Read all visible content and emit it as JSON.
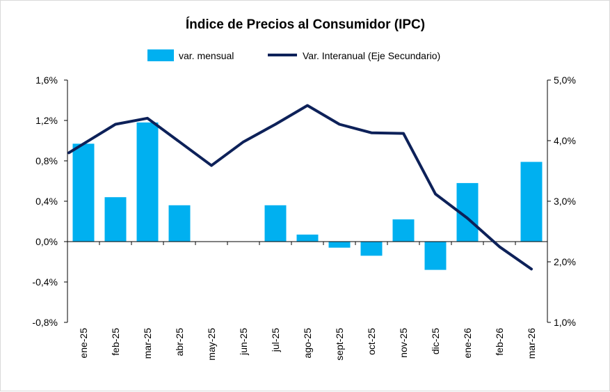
{
  "chart_data": {
    "type": "bar",
    "title": "Índice de Precios al Consumidor  (IPC)",
    "categories": [
      "ene-25",
      "feb-25",
      "mar-25",
      "abr-25",
      "may-25",
      "jun-25",
      "jul-25",
      "ago-25",
      "sept-25",
      "oct-25",
      "nov-25",
      "dic-25",
      "ene-26",
      "feb-26",
      "mar-26"
    ],
    "series": [
      {
        "name": "var. mensual",
        "type": "bar",
        "axis": "primary",
        "color": "#00b0f0",
        "values": [
          0.97,
          0.44,
          1.18,
          0.36,
          0.0,
          0.0,
          0.36,
          0.07,
          -0.06,
          -0.14,
          0.22,
          -0.28,
          0.58,
          0.0,
          0.79
        ]
      },
      {
        "name": "Var. Interanual (Eje Secundario)",
        "type": "line",
        "axis": "secondary",
        "color": "#0d2159",
        "values": [
          3.8,
          4.27,
          4.37,
          3.98,
          3.59,
          3.98,
          4.27,
          4.58,
          4.27,
          4.13,
          4.12,
          3.12,
          2.72,
          2.25,
          1.88
        ]
      }
    ],
    "y_primary": {
      "range": [
        -0.8,
        1.6
      ],
      "ticks": [
        "-0,8%",
        "-0,4%",
        "0,0%",
        "0,4%",
        "0,8%",
        "1,2%",
        "1,6%"
      ]
    },
    "y_secondary": {
      "range": [
        1.0,
        5.0
      ],
      "ticks": [
        "1,0%",
        "2,0%",
        "3,0%",
        "4,0%",
        "5,0%"
      ]
    },
    "grid": false,
    "legend_position": "top-center"
  }
}
